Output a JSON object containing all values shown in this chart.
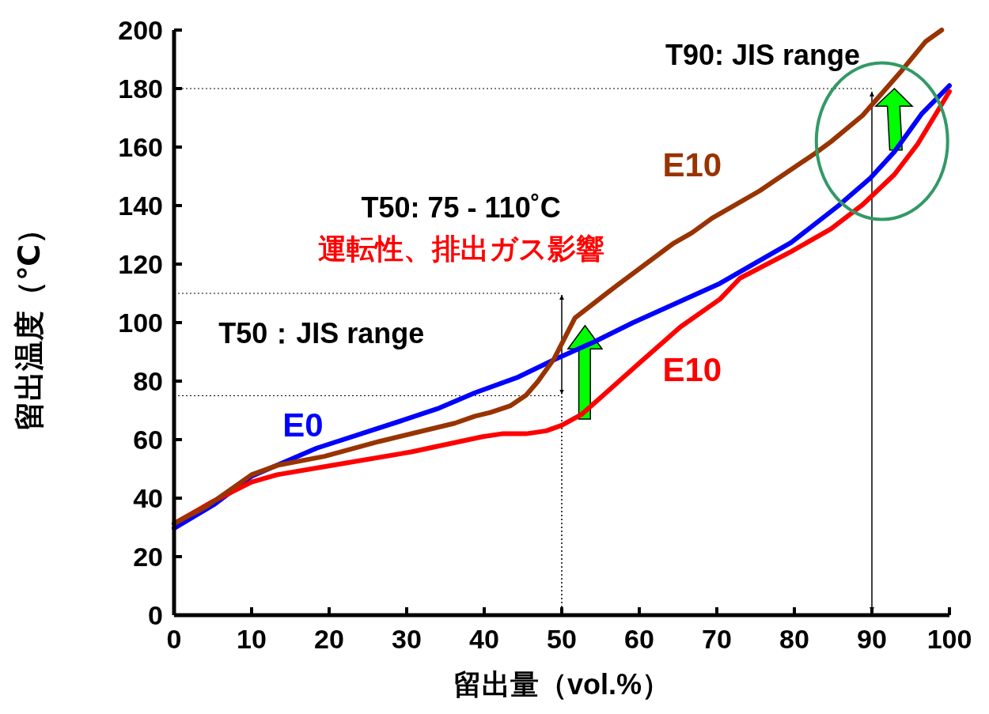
{
  "chart_data": {
    "type": "line",
    "xlabel": "留出量（vol.%）",
    "ylabel": "留出温度（℃）",
    "xlim": [
      0,
      100
    ],
    "ylim": [
      0,
      200
    ],
    "xticks": [
      0,
      10,
      20,
      30,
      40,
      50,
      60,
      70,
      80,
      90,
      100
    ],
    "yticks": [
      0,
      20,
      40,
      60,
      80,
      100,
      120,
      140,
      160,
      180,
      200
    ],
    "grid": false,
    "line_style": "solid",
    "series": [
      {
        "name": "E0",
        "color": "#0000ff",
        "x": [
          0,
          5.1,
          10,
          18.4,
          29.6,
          34.2,
          38.8,
          44.4,
          49,
          54.1,
          59.2,
          70.4,
          75.5,
          79.6,
          85.7,
          89.8,
          92.9,
          96.4,
          100
        ],
        "values": [
          29.7,
          37.7,
          47.5,
          57.1,
          66.7,
          70.8,
          76,
          81.4,
          87.3,
          93.3,
          100,
          113.4,
          121.2,
          127.4,
          140,
          149.4,
          158.4,
          171.3,
          181
        ]
      },
      {
        "name": "E10",
        "color": "#ff0000",
        "x": [
          0,
          5.1,
          10,
          13.3,
          20.4,
          30.6,
          39.8,
          42.3,
          45.4,
          48,
          50,
          52.6,
          60.2,
          65.3,
          70.4,
          73,
          79.6,
          84.7,
          88.8,
          92.9,
          95.9,
          100
        ],
        "values": [
          31.3,
          39,
          45.5,
          48,
          51.2,
          55.8,
          61,
          62,
          62,
          63,
          64.9,
          68.7,
          86.6,
          98.5,
          108,
          115.2,
          124.3,
          132,
          140.3,
          150.6,
          161,
          179
        ]
      },
      {
        "name": "E10",
        "color": "#993300",
        "x": [
          0,
          4.1,
          10,
          13.3,
          19.4,
          26.5,
          36.2,
          38.8,
          40.8,
          43.4,
          45.4,
          46.9,
          49,
          51.7,
          57.1,
          64.3,
          66.8,
          69.4,
          75.5,
          82.7,
          84.7,
          88.8,
          93.9,
          96.9,
          99
        ],
        "values": [
          31.3,
          37,
          48,
          51.2,
          54.3,
          59.4,
          65.6,
          68,
          69.3,
          71.6,
          75.2,
          79.8,
          87.6,
          101.6,
          112.7,
          126.9,
          130.7,
          135.7,
          145,
          157.9,
          161.8,
          170.8,
          186.3,
          196,
          200
        ]
      }
    ],
    "ref_lines": [
      {
        "axis": "y",
        "value": 180,
        "line_style": "dotted",
        "color": "#000000"
      },
      {
        "axis": "y",
        "value": 110,
        "line_style": "dotted",
        "color": "#000000"
      },
      {
        "axis": "y",
        "value": 75,
        "line_style": "dotted",
        "color": "#000000"
      },
      {
        "axis": "x",
        "value": 50,
        "line_style": "dotted",
        "color": "#000000"
      },
      {
        "axis": "x",
        "value": 90,
        "line_style": "solid",
        "color": "#000000"
      }
    ],
    "annotations": [
      {
        "text": "T90: JIS range",
        "x": 90,
        "y": 180
      },
      "T50: 75 - 110˚C",
      "運転性、排出ガス影響",
      "T50：JIS range"
    ]
  }
}
